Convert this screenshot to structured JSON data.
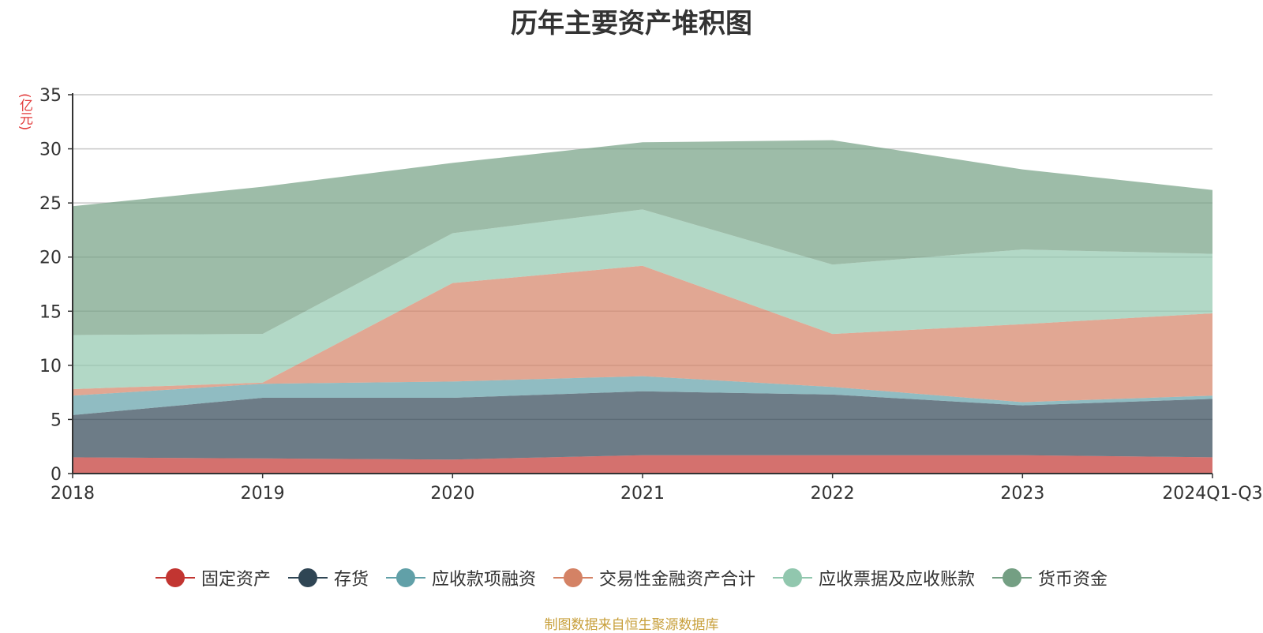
{
  "chart_data": {
    "type": "area",
    "stacked": true,
    "title": "历年主要资产堆积图",
    "ylabel": "(亿元)",
    "xlabel": "",
    "ylim": [
      0,
      35
    ],
    "yticks": [
      0,
      5,
      10,
      15,
      20,
      25,
      30,
      35
    ],
    "grid": true,
    "legend_position": "bottom",
    "categories": [
      "2018",
      "2019",
      "2020",
      "2021",
      "2022",
      "2023",
      "2024Q1-Q3"
    ],
    "series": [
      {
        "name": "固定资产",
        "color": "#c23531",
        "values": [
          1.5,
          1.4,
          1.3,
          1.7,
          1.7,
          1.7,
          1.5
        ]
      },
      {
        "name": "存货",
        "color": "#2f4554",
        "values": [
          3.9,
          5.6,
          5.7,
          5.9,
          5.6,
          4.6,
          5.4
        ]
      },
      {
        "name": "应收款项融资",
        "color": "#61a0a8",
        "values": [
          1.8,
          1.3,
          1.5,
          1.4,
          0.7,
          0.3,
          0.3
        ]
      },
      {
        "name": "交易性金融资产合计",
        "color": "#d48265",
        "values": [
          0.6,
          0.1,
          9.1,
          10.2,
          4.9,
          7.2,
          7.6
        ]
      },
      {
        "name": "应收票据及应收账款",
        "color": "#91c7ae",
        "values": [
          5.0,
          4.5,
          4.6,
          5.2,
          6.4,
          6.9,
          5.5
        ]
      },
      {
        "name": "货币资金",
        "color": "#749f83",
        "values": [
          11.9,
          13.6,
          6.5,
          6.2,
          11.5,
          7.4,
          5.9
        ]
      }
    ]
  },
  "source_note": "制图数据来自恒生聚源数据库"
}
